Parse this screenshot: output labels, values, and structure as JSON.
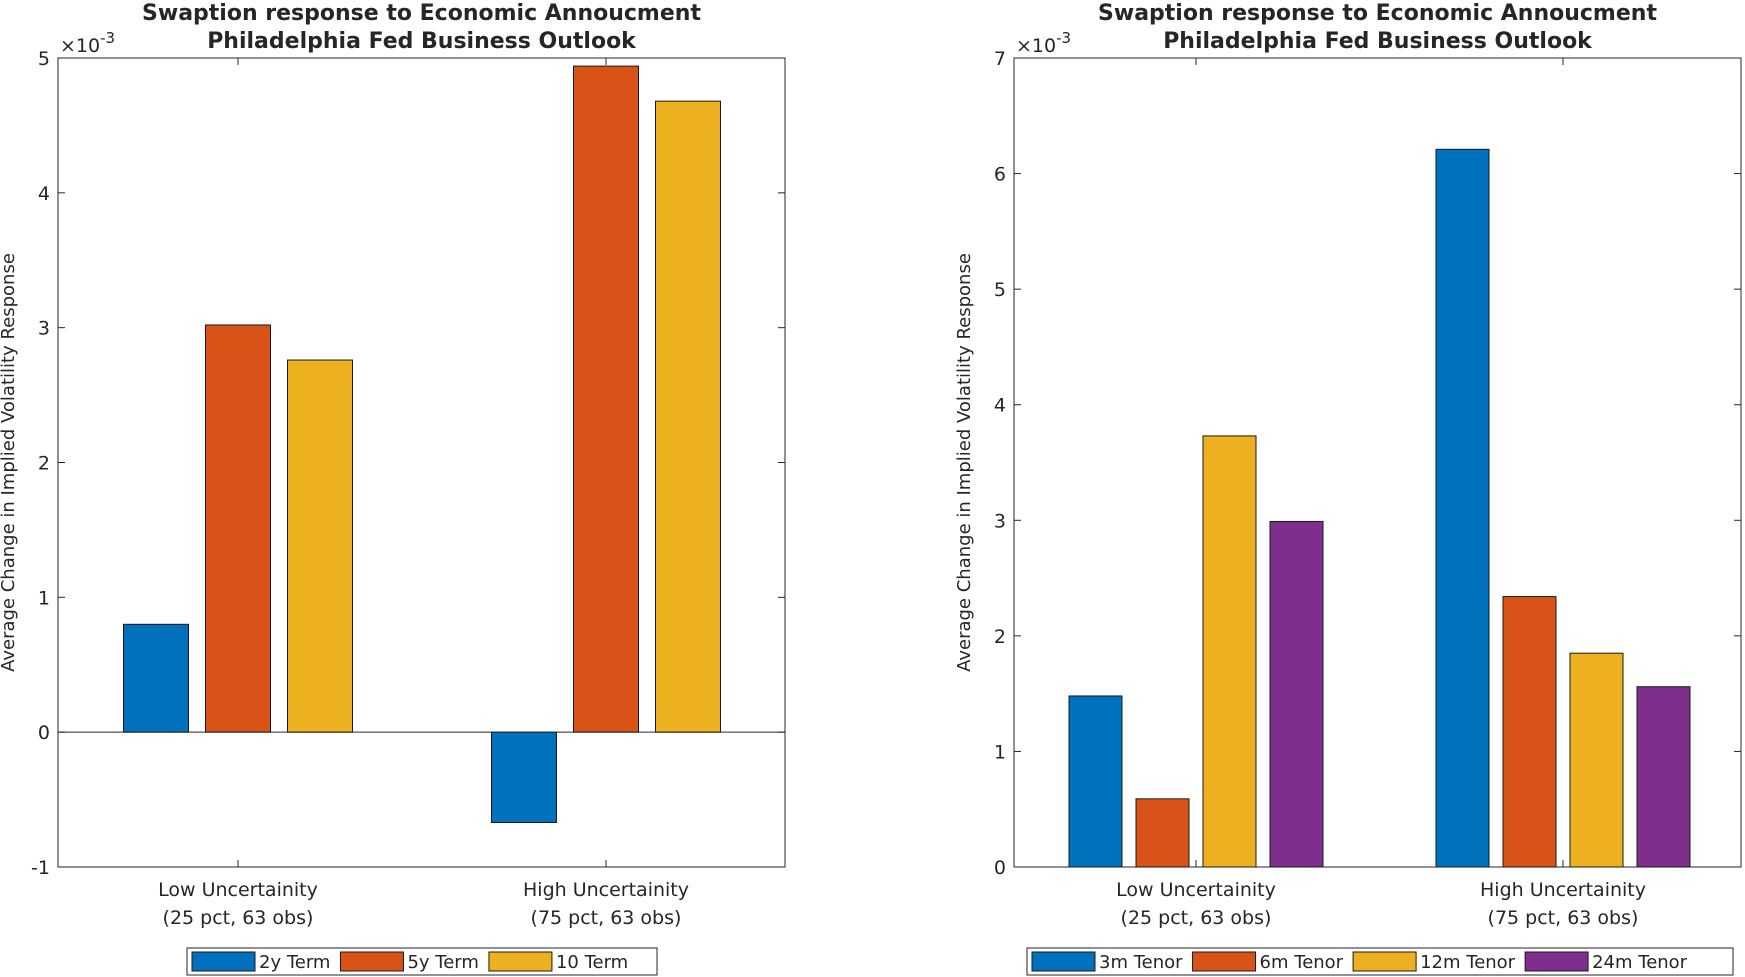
{
  "chart_data": [
    {
      "type": "bar",
      "title": [
        "Swaption response to Economic Annoucment",
        "Philadelphia Fed Business Outlook"
      ],
      "ylabel": "Average Change in Implied Volatility Response",
      "yexponent": "×10",
      "yexponent_power": "-3",
      "ylim": [
        -1,
        5
      ],
      "yticks": [
        -1,
        0,
        1,
        2,
        3,
        4,
        5
      ],
      "categories": [
        [
          "Low Uncertainity",
          "(25 pct, 63 obs)"
        ],
        [
          "High Uncertainity",
          "(75 pct, 63 obs)"
        ]
      ],
      "series": [
        {
          "name": "2y Term",
          "color": "#0072BD",
          "values": [
            0.8,
            -0.67
          ]
        },
        {
          "name": "5y Term",
          "color": "#D95319",
          "values": [
            3.02,
            4.94
          ]
        },
        {
          "name": "10 Term",
          "color": "#EDB120",
          "values": [
            2.76,
            4.68
          ]
        }
      ],
      "legend": "bottom-outside"
    },
    {
      "type": "bar",
      "title": [
        "Swaption response to Economic Annoucment",
        "Philadelphia Fed Business Outlook"
      ],
      "ylabel": "Average Change in Implied Volatility Response",
      "yexponent": "×10",
      "yexponent_power": "-3",
      "ylim": [
        0,
        7
      ],
      "yticks": [
        0,
        1,
        2,
        3,
        4,
        5,
        6,
        7
      ],
      "categories": [
        [
          "Low Uncertainity",
          "(25 pct, 63 obs)"
        ],
        [
          "High Uncertainity",
          "(75 pct, 63 obs)"
        ]
      ],
      "series": [
        {
          "name": "3m Tenor",
          "color": "#0072BD",
          "values": [
            1.48,
            6.21
          ]
        },
        {
          "name": "6m Tenor",
          "color": "#D95319",
          "values": [
            0.59,
            2.34
          ]
        },
        {
          "name": "12m Tenor",
          "color": "#EDB120",
          "values": [
            3.73,
            1.85
          ]
        },
        {
          "name": "24m Tenor",
          "color": "#7E2F8E",
          "values": [
            2.99,
            1.56
          ]
        }
      ],
      "legend": "bottom-outside"
    }
  ]
}
